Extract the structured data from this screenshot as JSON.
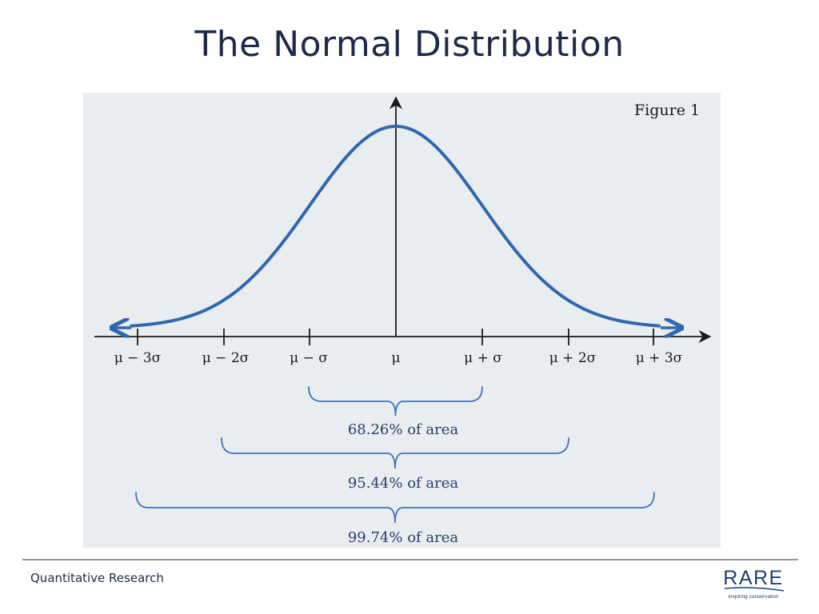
{
  "slide": {
    "title": "The Normal Distribution"
  },
  "figure": {
    "label": "Figure 1",
    "curve_color": "#2f68b0",
    "brace_color": "#3f74b8",
    "tick_labels": [
      "μ − 3σ",
      "μ − 2σ",
      "μ − σ",
      "μ",
      "μ + σ",
      "μ + 2σ",
      "μ + 3σ"
    ],
    "area_labels": [
      "68.26% of area",
      "95.44% of area",
      "99.74% of area"
    ]
  },
  "footer": {
    "text": "Quantitative Research"
  },
  "logo": {
    "text": "RARE",
    "tagline": "inspiring conservation",
    "color": "#1f3f6e"
  }
}
